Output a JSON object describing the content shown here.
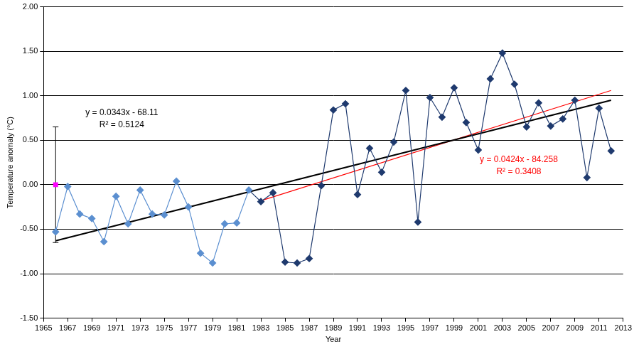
{
  "chart_data": {
    "type": "line",
    "x_label": "Year",
    "y_label": "Temperature anomaly (°C)",
    "xlim": [
      1965,
      2013
    ],
    "xticks": [
      1965,
      1967,
      1969,
      1971,
      1973,
      1975,
      1977,
      1979,
      1981,
      1983,
      1985,
      1987,
      1989,
      1991,
      1993,
      1995,
      1997,
      1999,
      2001,
      2003,
      2005,
      2007,
      2009,
      2011,
      2013
    ],
    "ylim": [
      -1.5,
      2
    ],
    "yticks": [
      {
        "value": -1.5,
        "label": "-1.50"
      },
      {
        "value": -1,
        "label": "-1.00"
      },
      {
        "value": -0.5,
        "label": "-0.50"
      },
      {
        "value": 0,
        "label": "0.00"
      },
      {
        "value": 0.5,
        "label": "0.50"
      },
      {
        "value": 1,
        "label": "1.00"
      },
      {
        "value": 1.5,
        "label": "1.50"
      },
      {
        "value": 2,
        "label": "2.00"
      }
    ],
    "grid": "y",
    "series": [
      {
        "x": [
          1966,
          1967,
          1968,
          1969,
          1970,
          1971,
          1972,
          1973,
          1974,
          1975,
          1976,
          1977,
          1978,
          1979,
          1980,
          1981,
          1982,
          1983,
          1984,
          1985,
          1986,
          1987,
          1988,
          1989,
          1990,
          1991,
          1992,
          1993,
          1994,
          1995,
          1996,
          1997,
          1998,
          1999,
          2000,
          2001,
          2002,
          2003,
          2004,
          2005,
          2006,
          2007,
          2008,
          2009,
          2010,
          2011,
          2012
        ],
        "values": [
          -0.53,
          -0.02,
          -0.33,
          -0.38,
          -0.64,
          -0.13,
          -0.44,
          -0.06,
          -0.33,
          -0.34,
          0.04,
          -0.25,
          -0.77,
          -0.88,
          -0.44,
          -0.43,
          -0.06,
          -0.19,
          -0.09,
          -0.87,
          -0.88,
          -0.83,
          -0.01,
          0.84,
          0.91,
          -0.11,
          0.41,
          0.14,
          0.48,
          1.06,
          -0.42,
          0.98,
          0.76,
          1.09,
          0.7,
          0.39,
          1.19,
          1.48,
          1.13,
          0.65,
          0.92,
          0.66,
          0.74,
          0.95,
          0.08,
          0.86,
          0.38
        ],
        "color": "#1f3a6e",
        "colors": [
          "#5b8fd0",
          "#5b8fd0",
          "#5b8fd0",
          "#5b8fd0",
          "#5b8fd0",
          "#5b8fd0",
          "#5b8fd0",
          "#5b8fd0",
          "#5b8fd0",
          "#5b8fd0",
          "#5b8fd0",
          "#5b8fd0",
          "#5b8fd0",
          "#5b8fd0",
          "#5b8fd0",
          "#5b8fd0",
          "#5b8fd0",
          "#1f3a6e",
          "#1f3a6e",
          "#1f3a6e",
          "#1f3a6e",
          "#1f3a6e",
          "#1f3a6e",
          "#1f3a6e",
          "#1f3a6e",
          "#1f3a6e",
          "#1f3a6e",
          "#1f3a6e",
          "#1f3a6e",
          "#1f3a6e",
          "#1f3a6e",
          "#1f3a6e",
          "#1f3a6e",
          "#1f3a6e",
          "#1f3a6e",
          "#1f3a6e",
          "#1f3a6e",
          "#1f3a6e",
          "#1f3a6e",
          "#1f3a6e",
          "#1f3a6e",
          "#1f3a6e",
          "#1f3a6e",
          "#1f3a6e",
          "#1f3a6e",
          "#1f3a6e",
          "#1f3a6e"
        ],
        "marker": "diamond",
        "line_style": "solid"
      },
      {
        "x": [
          1966,
          2012
        ],
        "values": [
          -0.63,
          0.95
        ],
        "color": "#000000",
        "marker": "none",
        "line_style": "solid"
      },
      {
        "x": [
          1983,
          2012
        ],
        "values": [
          -0.18,
          1.06
        ],
        "color": "#ff0000",
        "marker": "none",
        "line_style": "solid"
      },
      {
        "x": [
          1966
        ],
        "values": [
          0
        ],
        "error": [
          0.65
        ],
        "color": "#ff00ff",
        "marker": "square",
        "line_style": "none"
      }
    ],
    "annotations": [
      {
        "text": "y = 0.0343x - 68.11",
        "color": "#000000"
      },
      {
        "text": "R² = 0.5124",
        "color": "#000000"
      },
      {
        "text": "y = 0.0424x - 84.258",
        "color": "#ff0000"
      },
      {
        "text": "R² = 0.3408",
        "color": "#ff0000"
      }
    ]
  }
}
